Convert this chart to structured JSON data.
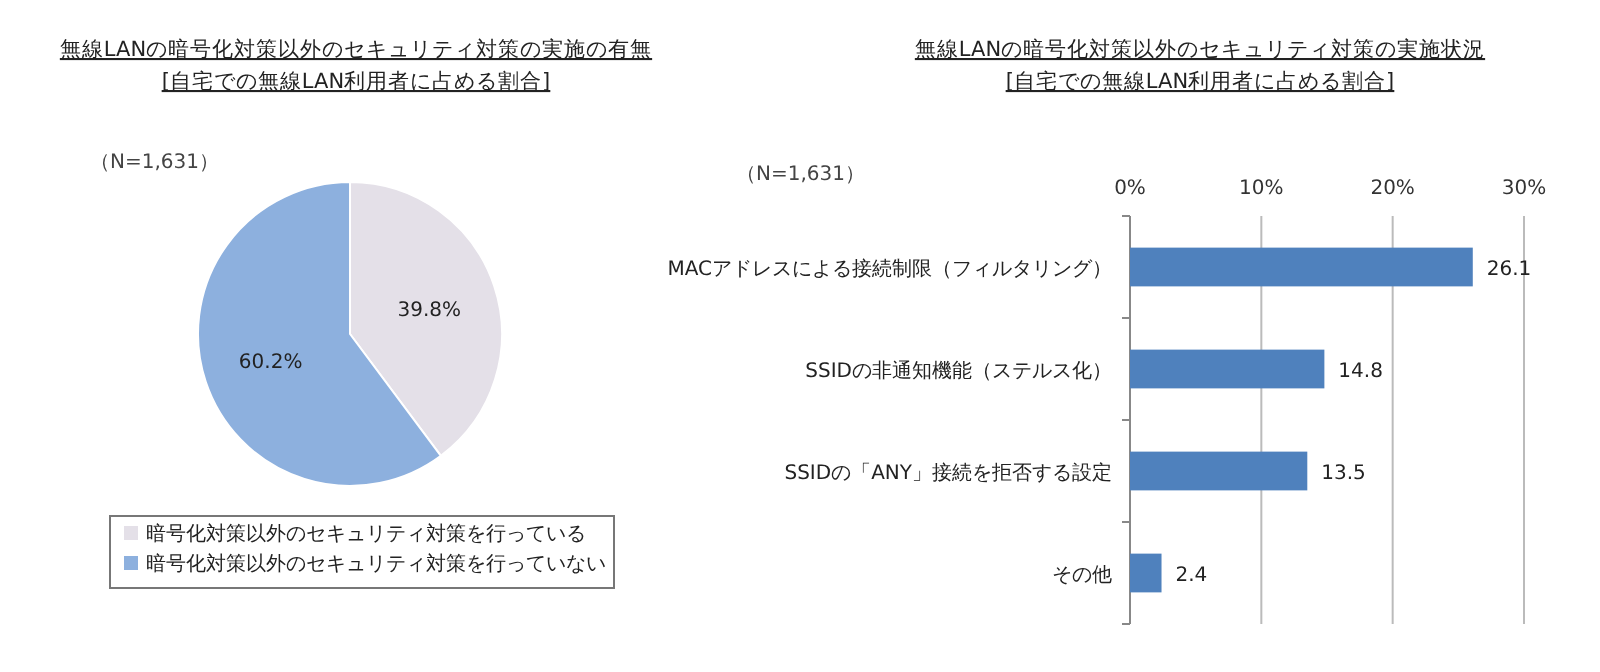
{
  "chart_data": [
    {
      "type": "pie",
      "title": "無線LANの暗号化対策以外のセキュリティ対策の実施の有無",
      "subtitle": "[自宅での無線LAN利用者に占める割合]",
      "annotations": [
        "（N=1,631）"
      ],
      "categories": [
        "暗号化対策以外のセキュリティ対策を行っている",
        "暗号化対策以外のセキュリティ対策を行っていない"
      ],
      "values": [
        39.8,
        60.2
      ],
      "colors": [
        "#e4e0e8",
        "#8db0de"
      ],
      "value_labels": [
        "39.8%",
        "60.2%"
      ],
      "legend": "bottom"
    },
    {
      "type": "bar",
      "orientation": "horizontal",
      "title": "無線LANの暗号化対策以外のセキュリティ対策の実施状況",
      "subtitle": "[自宅での無線LAN利用者に占める割合]",
      "annotations": [
        "（N=1,631）"
      ],
      "categories": [
        "MACアドレスによる接続制限（フィルタリング）",
        "SSIDの非通知機能（ステルス化）",
        "SSIDの「ANY」接続を拒否する設定",
        "その他"
      ],
      "values": [
        26.1,
        14.8,
        13.5,
        2.4
      ],
      "color": "#4f81bd",
      "data_labels": true,
      "xlim": [
        0,
        30
      ],
      "xticks": [
        {
          "value": 0,
          "label": "0%"
        },
        {
          "value": 10,
          "label": "10%"
        },
        {
          "value": 20,
          "label": "20%"
        },
        {
          "value": 30,
          "label": "30%"
        }
      ],
      "grid": "x"
    }
  ]
}
